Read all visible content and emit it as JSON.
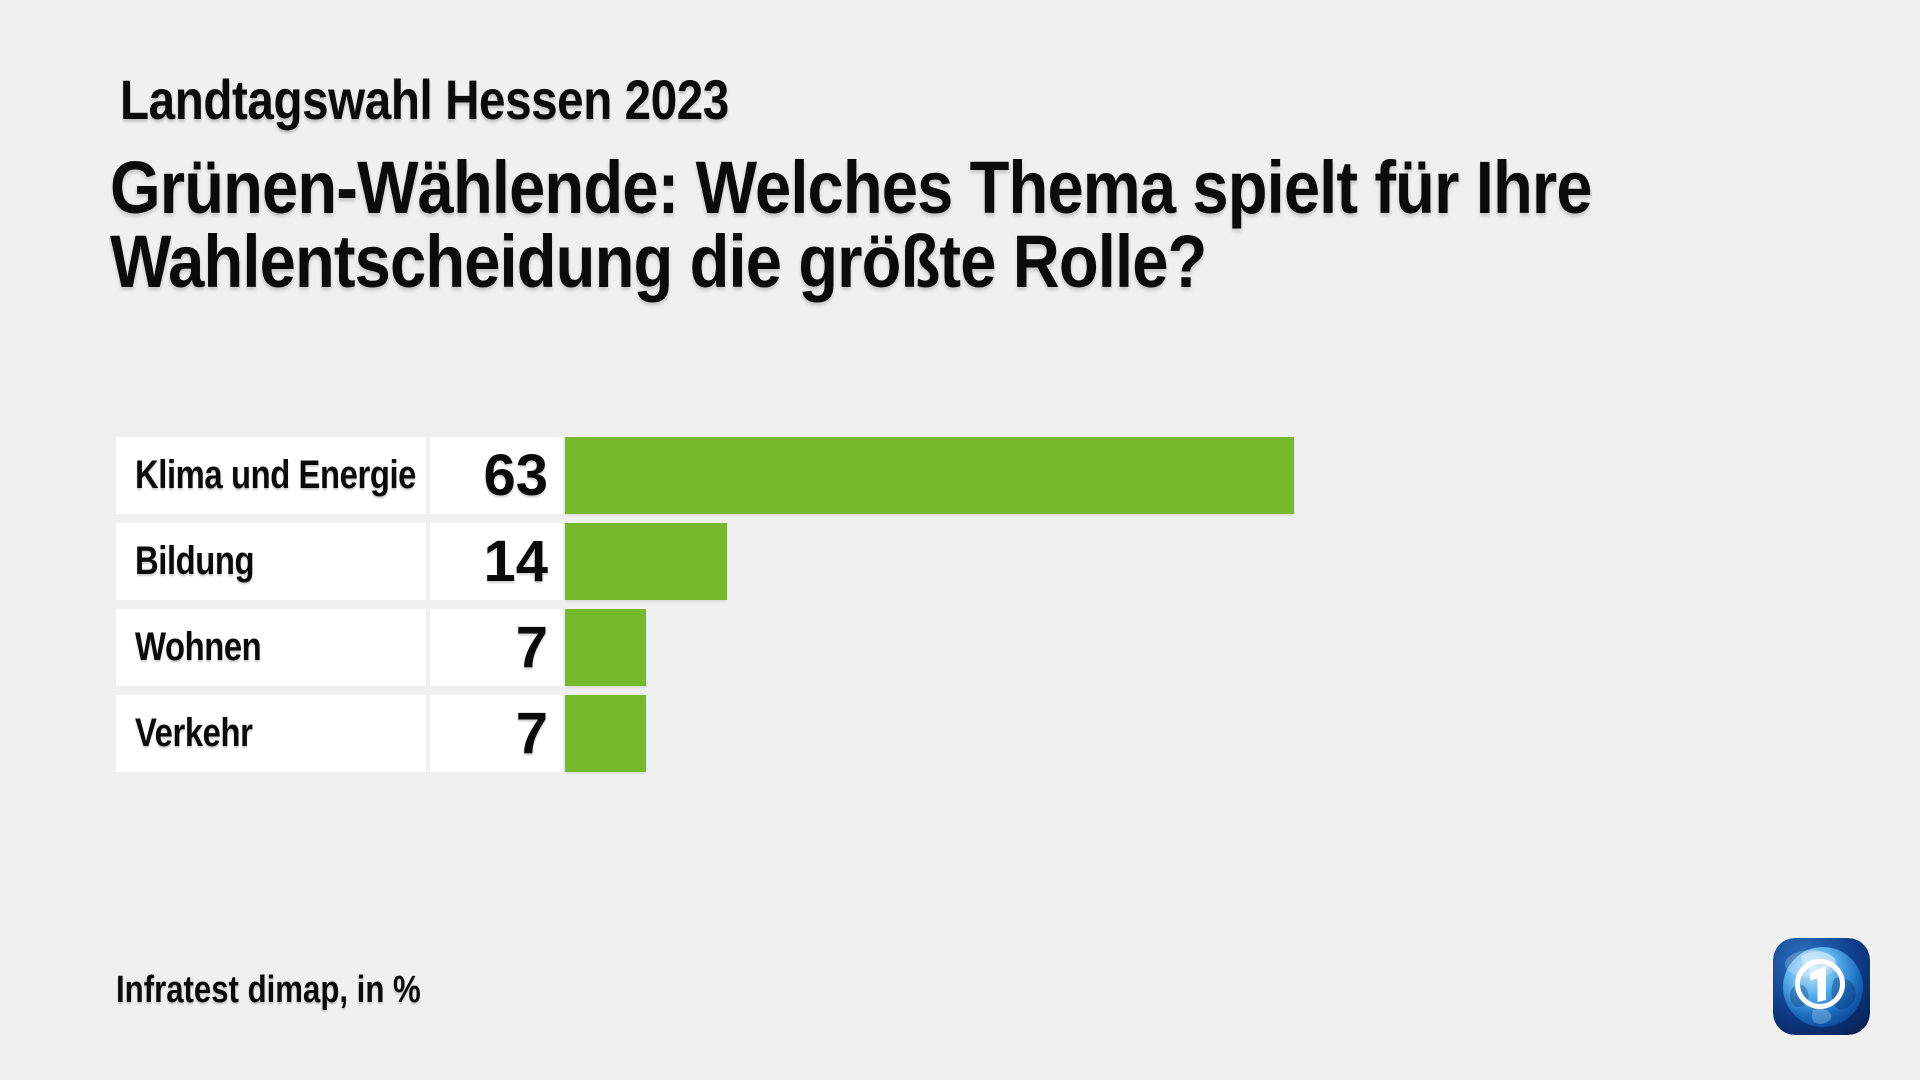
{
  "header": {
    "kicker": "Landtagswahl Hessen 2023",
    "title_line1": "Grünen-Wählende: Welches Thema spielt für Ihre",
    "title_line2": "Wahlentscheidung die größte Rolle?"
  },
  "footer": {
    "source": "Infratest dimap, in %"
  },
  "logo": {
    "label": "ARD Das Erste"
  },
  "colors": {
    "background": "#f0f0f0",
    "bar_green": "#76b92a",
    "cell_white": "#ffffff",
    "text_black": "#0b0b0b",
    "logo_blue_light": "#2168b8",
    "logo_blue_dark": "#071c45"
  },
  "chart_data": {
    "type": "bar",
    "orientation": "horizontal",
    "title": "Grünen-Wählende: Welches Thema spielt für Ihre Wahlentscheidung die größte Rolle?",
    "subtitle": "Landtagswahl Hessen 2023",
    "source": "Infratest dimap, in %",
    "unit": "%",
    "categories": [
      "Klima und Energie",
      "Bildung",
      "Wohnen",
      "Verkehr"
    ],
    "values": [
      63,
      14,
      7,
      7
    ],
    "xlim": [
      0,
      63
    ],
    "grid": false,
    "legend": false,
    "bar_color": "#76b92a",
    "value_labels_shown": true
  }
}
